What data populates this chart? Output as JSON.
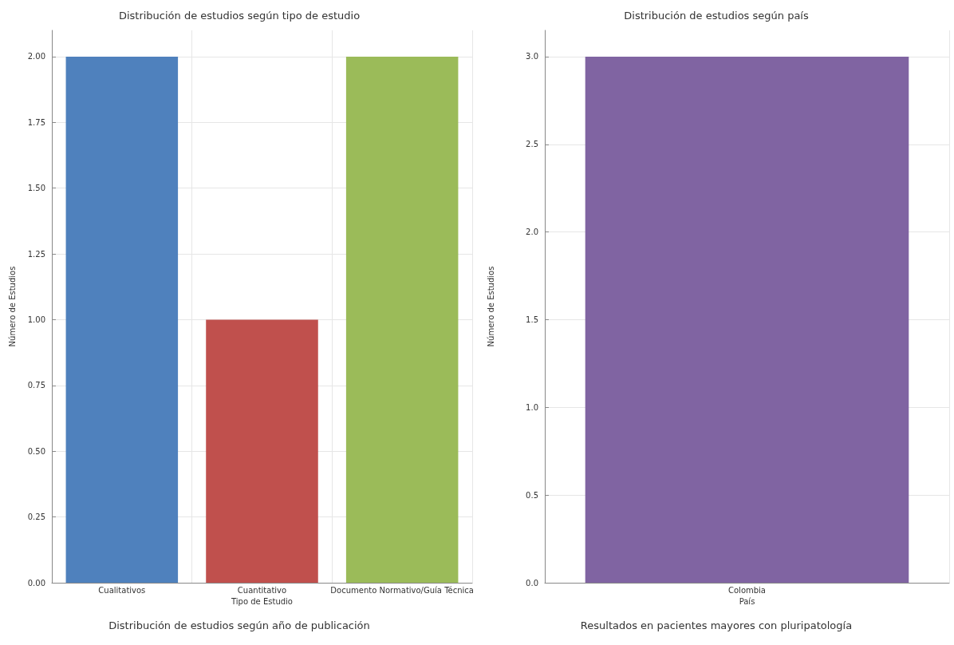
{
  "chart_data": [
    {
      "type": "bar",
      "title": "Distribución de estudios según tipo de estudio",
      "xlabel": "Tipo de Estudio",
      "ylabel": "Número de Estudios",
      "categories": [
        "Cualitativos",
        "Cuantitativo",
        "Documento Normativo/Guía Técnica"
      ],
      "values": [
        2,
        1,
        2
      ],
      "colors": [
        "#4f81bd",
        "#c0504d",
        "#9bbb59"
      ],
      "ylim": [
        0,
        2.1
      ],
      "yticks": [
        {
          "value": 0,
          "label": "0.00"
        },
        {
          "value": 0.25,
          "label": "0.25"
        },
        {
          "value": 0.5,
          "label": "0.50"
        },
        {
          "value": 0.75,
          "label": "0.75"
        },
        {
          "value": 1,
          "label": "1.00"
        },
        {
          "value": 1.25,
          "label": "1.25"
        },
        {
          "value": 1.5,
          "label": "1.50"
        },
        {
          "value": 1.75,
          "label": "1.75"
        },
        {
          "value": 2,
          "label": "2.00"
        }
      ],
      "grid": true
    },
    {
      "type": "bar",
      "title": "Distribución de estudios según país",
      "xlabel": "País",
      "ylabel": "Número de Estudios",
      "categories": [
        "Colombia"
      ],
      "values": [
        3
      ],
      "colors": [
        "#8064a2"
      ],
      "ylim": [
        0,
        3.15
      ],
      "yticks": [
        {
          "value": 0,
          "label": "0.0"
        },
        {
          "value": 0.5,
          "label": "0.5"
        },
        {
          "value": 1,
          "label": "1.0"
        },
        {
          "value": 1.5,
          "label": "1.5"
        },
        {
          "value": 2,
          "label": "2.0"
        },
        {
          "value": 2.5,
          "label": "2.5"
        },
        {
          "value": 3,
          "label": "3.0"
        }
      ],
      "grid": true
    },
    {
      "type": "other",
      "title": "Distribución de estudios según año de publicación"
    },
    {
      "type": "other",
      "title": "Resultados en pacientes mayores con pluripatología"
    }
  ]
}
